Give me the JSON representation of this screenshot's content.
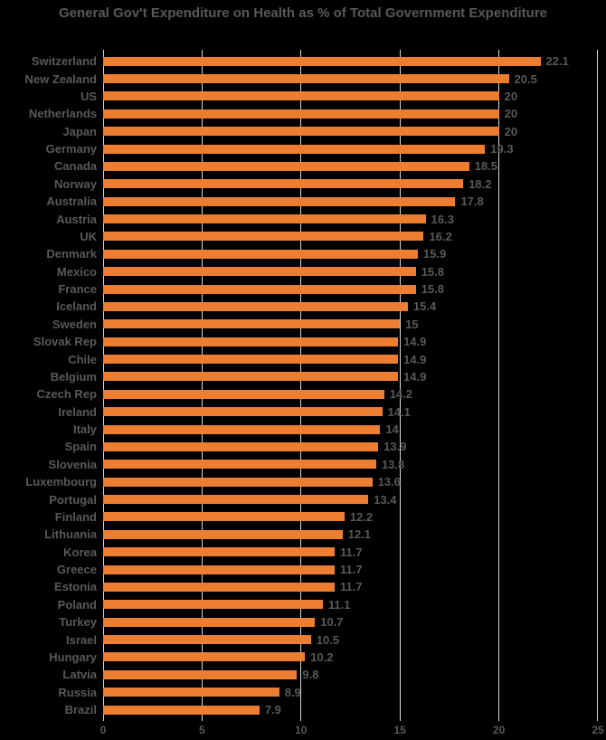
{
  "chart_data": {
    "type": "bar",
    "orientation": "horizontal",
    "title": "General Gov't Expenditure on Health as % of Total Government Expenditure",
    "categories": [
      "Switzerland",
      "New Zealand",
      "US",
      "Netherlands",
      "Japan",
      "Germany",
      "Canada",
      "Norway",
      "Australia",
      "Austria",
      "UK",
      "Denmark",
      "Mexico",
      "France",
      "Iceland",
      "Sweden",
      "Slovak Rep",
      "Chile",
      "Belgium",
      "Czech Rep",
      "Ireland",
      "Italy",
      "Spain",
      "Slovenia",
      "Luxembourg",
      "Portugal",
      "Finland",
      "Lithuania",
      "Korea",
      "Greece",
      "Estonia",
      "Poland",
      "Turkey",
      "Israel",
      "Hungary",
      "Latvia",
      "Russia",
      "Brazil"
    ],
    "values": [
      22.1,
      20.5,
      20,
      20,
      20,
      19.3,
      18.5,
      18.2,
      17.8,
      16.3,
      16.2,
      15.9,
      15.8,
      15.8,
      15.4,
      15,
      14.9,
      14.9,
      14.9,
      14.2,
      14.1,
      14,
      13.9,
      13.8,
      13.6,
      13.4,
      12.2,
      12.1,
      11.7,
      11.7,
      11.7,
      11.1,
      10.7,
      10.5,
      10.2,
      9.8,
      8.9,
      7.9
    ],
    "value_labels": [
      "22.1",
      "20.5",
      "20",
      "20",
      "20",
      "19.3",
      "18.5",
      "18.2",
      "17.8",
      "16.3",
      "16.2",
      "15.9",
      "15.8",
      "15.8",
      "15.4",
      "15",
      "14.9",
      "14.9",
      "14.9",
      "14.2",
      "14.1",
      "14",
      "13.9",
      "13.8",
      "13.6",
      "13.4",
      "12.2",
      "12.1",
      "11.7",
      "11.7",
      "11.7",
      "11.1",
      "10.7",
      "10.5",
      "10.2",
      "9.8",
      "8.9",
      "7.9"
    ],
    "xlim": [
      0,
      25
    ],
    "x_ticks": [
      "0",
      "5",
      "10",
      "15",
      "20",
      "25"
    ],
    "grid": true,
    "legend": "none",
    "bar_color": "#ED7D31",
    "text_color": "#595959",
    "gridline_color": "#D6D6D6",
    "background_color": "#000000"
  }
}
